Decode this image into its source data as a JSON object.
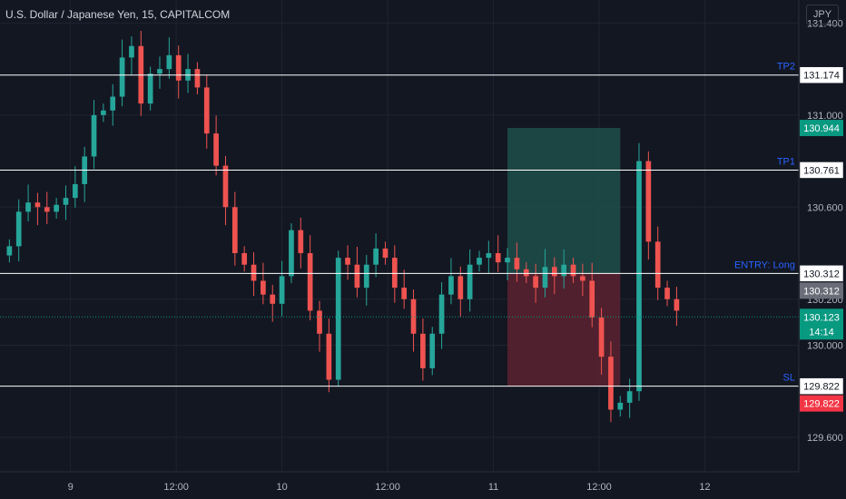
{
  "header": {
    "title": "U.S. Dollar / Japanese Yen, 15, CAPITALCOM",
    "currency": "JPY"
  },
  "colors": {
    "background": "#131722",
    "up": "#26a69a",
    "down": "#ef5350",
    "grid": "#1f2330",
    "level_line": "#ffffff",
    "level_label": "#2962ff",
    "target_zone": "#1e4f4a",
    "stop_zone": "#5c2230",
    "last_price": "#089981",
    "sl_tag": "#f23645",
    "entry_tag": "#6a6d78"
  },
  "chart_data": {
    "type": "candlestick",
    "ylim": [
      129.45,
      131.5
    ],
    "xlim": [
      0,
      85
    ],
    "y_ticks": [
      "131.400",
      "131.000",
      "130.600",
      "130.200",
      "130.000",
      "129.600"
    ],
    "y_tick_values": [
      131.4,
      131.0,
      130.6,
      130.2,
      130.0,
      129.6
    ],
    "x_ticks": [
      {
        "label": "9",
        "x": 7.5
      },
      {
        "label": "12:00",
        "x": 18.75
      },
      {
        "label": "10",
        "x": 30
      },
      {
        "label": "12:00",
        "x": 41.25
      },
      {
        "label": "11",
        "x": 52.5
      },
      {
        "label": "12:00",
        "x": 63.75
      },
      {
        "label": "12",
        "x": 75
      }
    ],
    "levels": [
      {
        "name": "TP2",
        "price": 131.174,
        "label": "131.174"
      },
      {
        "name": "TP1",
        "price": 130.761,
        "label": "130.761"
      },
      {
        "name": "ENTRY: Long",
        "price": 130.312,
        "label": "130.312"
      },
      {
        "name": "SL",
        "price": 129.822,
        "label": "129.822"
      }
    ],
    "position": {
      "x_start": 54,
      "x_end": 66,
      "entry": 130.312,
      "target": 130.944,
      "stop": 129.822,
      "target_label": "130.944",
      "entry_label": "130.312",
      "stop_label": "129.822"
    },
    "last_price": {
      "price": 130.123,
      "label": "130.123",
      "countdown": "14:14"
    },
    "candles_close": [
      130.43,
      130.58,
      130.62,
      130.6,
      130.58,
      130.61,
      130.64,
      130.7,
      130.82,
      131.0,
      131.02,
      131.08,
      131.25,
      131.3,
      131.05,
      131.18,
      131.2,
      131.26,
      131.15,
      131.2,
      131.12,
      130.92,
      130.78,
      130.6,
      130.4,
      130.35,
      130.28,
      130.22,
      130.18,
      130.3,
      130.5,
      130.4,
      130.15,
      130.05,
      129.85,
      130.38,
      130.35,
      130.25,
      130.35,
      130.42,
      130.38,
      130.25,
      130.2,
      130.05,
      129.9,
      130.05,
      130.22,
      130.3,
      130.2,
      130.35,
      130.38,
      130.4,
      130.36,
      130.38,
      130.33,
      130.3,
      130.25,
      130.34,
      130.3,
      130.35,
      130.3,
      130.28,
      130.12,
      129.95,
      129.72,
      129.75,
      129.8,
      130.8,
      130.45,
      130.25,
      130.2,
      130.15
    ]
  }
}
